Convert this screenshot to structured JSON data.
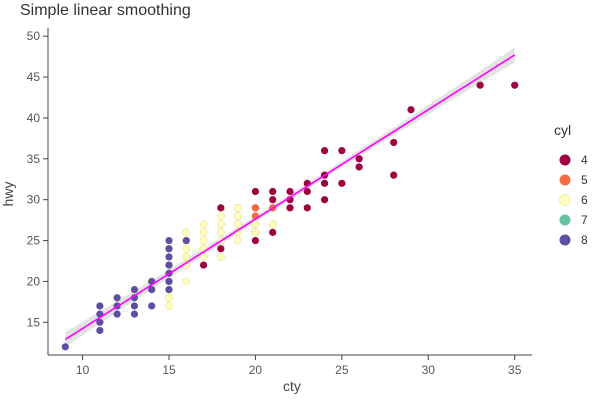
{
  "chart_data": {
    "type": "scatter",
    "title": "Simple linear smoothing",
    "xlabel": "cty",
    "ylabel": "hwy",
    "xlim": [
      8,
      36
    ],
    "ylim": [
      11,
      51
    ],
    "x_ticks": [
      10,
      15,
      20,
      25,
      30,
      35
    ],
    "y_ticks": [
      15,
      20,
      25,
      30,
      35,
      40,
      45,
      50
    ],
    "grid": false,
    "legend": {
      "title": "cyl",
      "position": "right",
      "entries": [
        {
          "label": "4",
          "color": "#9e0142"
        },
        {
          "label": "5",
          "color": "#f46d43"
        },
        {
          "label": "6",
          "color": "#ffffbf"
        },
        {
          "label": "7",
          "color": "#66c2a5"
        },
        {
          "label": "8",
          "color": "#5e4fa2"
        }
      ]
    },
    "series": [
      {
        "name": "4",
        "color": "#9e0142",
        "points": [
          [
            15,
            20
          ],
          [
            17,
            22
          ],
          [
            18,
            24
          ],
          [
            18,
            25
          ],
          [
            18,
            26
          ],
          [
            18,
            27
          ],
          [
            18,
            29
          ],
          [
            19,
            25
          ],
          [
            19,
            26
          ],
          [
            19,
            27
          ],
          [
            19,
            28
          ],
          [
            19,
            29
          ],
          [
            20,
            25
          ],
          [
            20,
            26
          ],
          [
            20,
            27
          ],
          [
            20,
            28
          ],
          [
            20,
            29
          ],
          [
            20,
            31
          ],
          [
            21,
            26
          ],
          [
            21,
            27
          ],
          [
            21,
            29
          ],
          [
            21,
            30
          ],
          [
            21,
            31
          ],
          [
            22,
            29
          ],
          [
            22,
            30
          ],
          [
            22,
            31
          ],
          [
            23,
            29
          ],
          [
            23,
            31
          ],
          [
            23,
            32
          ],
          [
            24,
            30
          ],
          [
            24,
            32
          ],
          [
            24,
            33
          ],
          [
            24,
            36
          ],
          [
            25,
            32
          ],
          [
            25,
            36
          ],
          [
            26,
            34
          ],
          [
            26,
            35
          ],
          [
            28,
            33
          ],
          [
            28,
            37
          ],
          [
            29,
            41
          ],
          [
            33,
            44
          ],
          [
            35,
            44
          ]
        ]
      },
      {
        "name": "5",
        "color": "#f46d43",
        "points": [
          [
            20,
            28
          ],
          [
            20,
            29
          ],
          [
            21,
            29
          ]
        ]
      },
      {
        "name": "6",
        "color": "#ffffbf",
        "points": [
          [
            14,
            20
          ],
          [
            15,
            17
          ],
          [
            15,
            18
          ],
          [
            15,
            19
          ],
          [
            15,
            20
          ],
          [
            15,
            22
          ],
          [
            15,
            24
          ],
          [
            16,
            20
          ],
          [
            16,
            22
          ],
          [
            16,
            23
          ],
          [
            16,
            24
          ],
          [
            16,
            25
          ],
          [
            16,
            26
          ],
          [
            17,
            23
          ],
          [
            17,
            24
          ],
          [
            17,
            25
          ],
          [
            17,
            26
          ],
          [
            17,
            27
          ],
          [
            18,
            23
          ],
          [
            18,
            25
          ],
          [
            18,
            26
          ],
          [
            18,
            27
          ],
          [
            18,
            28
          ],
          [
            19,
            25
          ],
          [
            19,
            26
          ],
          [
            19,
            27
          ],
          [
            19,
            28
          ],
          [
            19,
            29
          ],
          [
            20,
            26
          ],
          [
            20,
            27
          ],
          [
            21,
            27
          ]
        ]
      },
      {
        "name": "7",
        "color": "#66c2a5",
        "points": []
      },
      {
        "name": "8",
        "color": "#5e4fa2",
        "points": [
          [
            9,
            12
          ],
          [
            11,
            14
          ],
          [
            11,
            15
          ],
          [
            11,
            16
          ],
          [
            11,
            17
          ],
          [
            12,
            16
          ],
          [
            12,
            17
          ],
          [
            12,
            18
          ],
          [
            13,
            16
          ],
          [
            13,
            17
          ],
          [
            13,
            18
          ],
          [
            13,
            19
          ],
          [
            14,
            17
          ],
          [
            14,
            19
          ],
          [
            14,
            20
          ],
          [
            15,
            19
          ],
          [
            15,
            20
          ],
          [
            15,
            21
          ],
          [
            15,
            22
          ],
          [
            15,
            23
          ],
          [
            15,
            24
          ],
          [
            15,
            25
          ],
          [
            16,
            25
          ]
        ]
      }
    ],
    "smooth": {
      "method": "lm",
      "color": "#ff00ff",
      "band_color": "#d9d9d9",
      "line": [
        [
          9,
          12.9
        ],
        [
          35,
          47.7
        ]
      ],
      "ci_halfwidth_ends": 0.9,
      "ci_halfwidth_center": 0.35
    }
  }
}
